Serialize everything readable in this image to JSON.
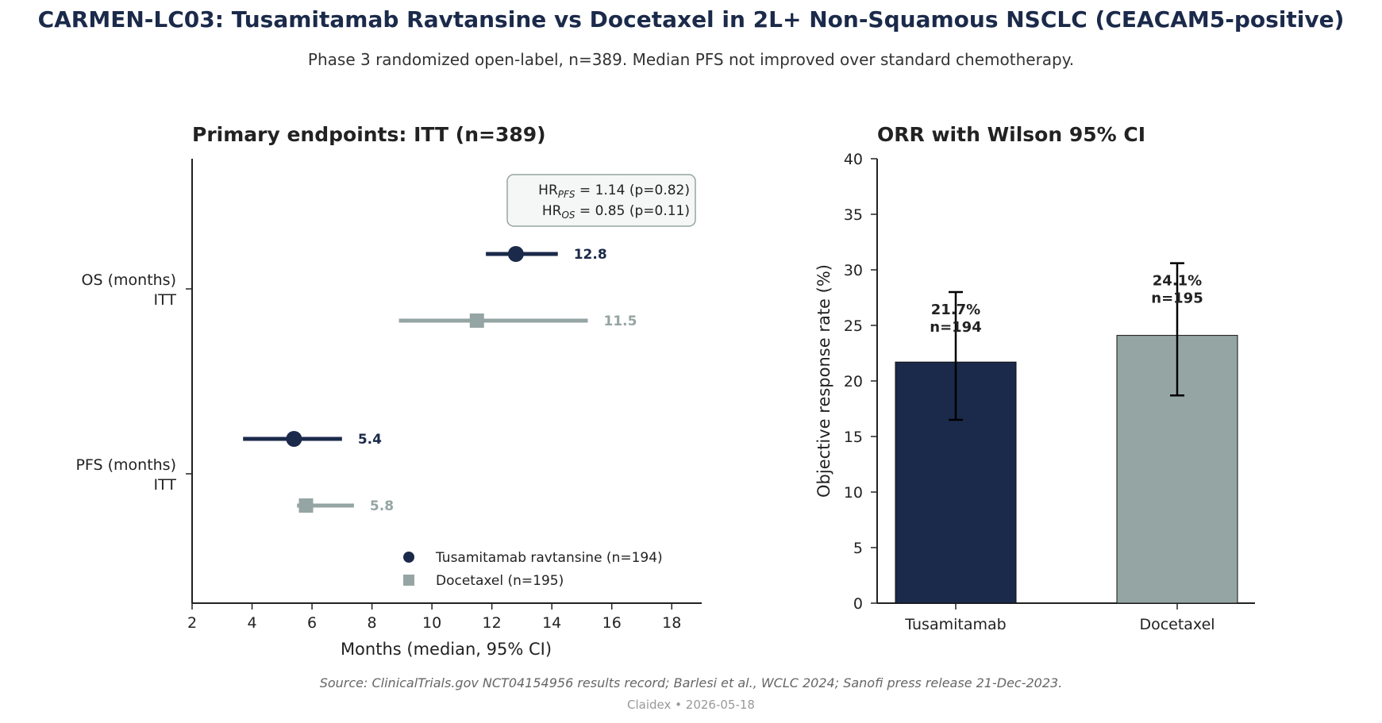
{
  "header": {
    "title": "CARMEN-LC03: Tusamitamab Ravtansine vs Docetaxel in 2L+ Non-Squamous NSCLC (CEACAM5-positive)",
    "subtitle": "Phase 3 randomized open-label, n=389. Median PFS not improved over standard chemotherapy."
  },
  "footer": {
    "source": "Source: ClinicalTrials.gov NCT04154956 results record; Barlesi et al., WCLC 2024; Sanofi press release 21-Dec-2023.",
    "credit": "Claidex • 2026-05-18"
  },
  "colors": {
    "tusamitamab": "#1b2a4a",
    "docetaxel": "#95a5a3"
  },
  "chart_data": [
    {
      "type": "scatter",
      "subtype": "forest",
      "title": "Primary endpoints: ITT (n=389)",
      "xlabel": "Months (median, 95% CI)",
      "xlim": [
        2,
        19
      ],
      "xticks": [
        2,
        4,
        6,
        8,
        10,
        12,
        14,
        16,
        18
      ],
      "categories": [
        {
          "line1": "OS (months)",
          "line2": "ITT"
        },
        {
          "line1": "PFS (months)",
          "line2": "ITT"
        }
      ],
      "series": [
        {
          "name": "Tusamitamab ravtansine (n=194)",
          "marker": "circle",
          "points": [
            {
              "category": "OS (months)",
              "median": 12.8,
              "ci": [
                11.8,
                14.2
              ],
              "label": "12.8"
            },
            {
              "category": "PFS (months)",
              "median": 5.4,
              "ci": [
                3.7,
                7.0
              ],
              "label": "5.4"
            }
          ]
        },
        {
          "name": "Docetaxel (n=195)",
          "marker": "square",
          "points": [
            {
              "category": "OS (months)",
              "median": 11.5,
              "ci": [
                8.9,
                15.2
              ],
              "label": "11.5"
            },
            {
              "category": "PFS (months)",
              "median": 5.8,
              "ci": [
                5.5,
                7.4
              ],
              "label": "5.8"
            }
          ]
        }
      ],
      "annotation": {
        "line1": {
          "prefix": "HR",
          "sub": "PFS",
          "rest": " = 1.14 (p=0.82)"
        },
        "line2": {
          "prefix": "HR",
          "sub": "OS",
          "rest": " = 0.85 (p=0.11)"
        }
      },
      "legend": "bottom-right",
      "grid": false
    },
    {
      "type": "bar",
      "title": "ORR with Wilson 95% CI",
      "ylabel": "Objective response rate (%)",
      "ylim": [
        0,
        40
      ],
      "yticks": [
        0,
        5,
        10,
        15,
        20,
        25,
        30,
        35,
        40
      ],
      "categories": [
        "Tusamitamab",
        "Docetaxel"
      ],
      "values": [
        21.7,
        24.1
      ],
      "ci": [
        [
          16.5,
          28.0
        ],
        [
          18.7,
          30.6
        ]
      ],
      "labels": [
        {
          "pct": "21.7%",
          "n": "n=194"
        },
        {
          "pct": "24.1%",
          "n": "n=195"
        }
      ],
      "grid": false
    }
  ]
}
